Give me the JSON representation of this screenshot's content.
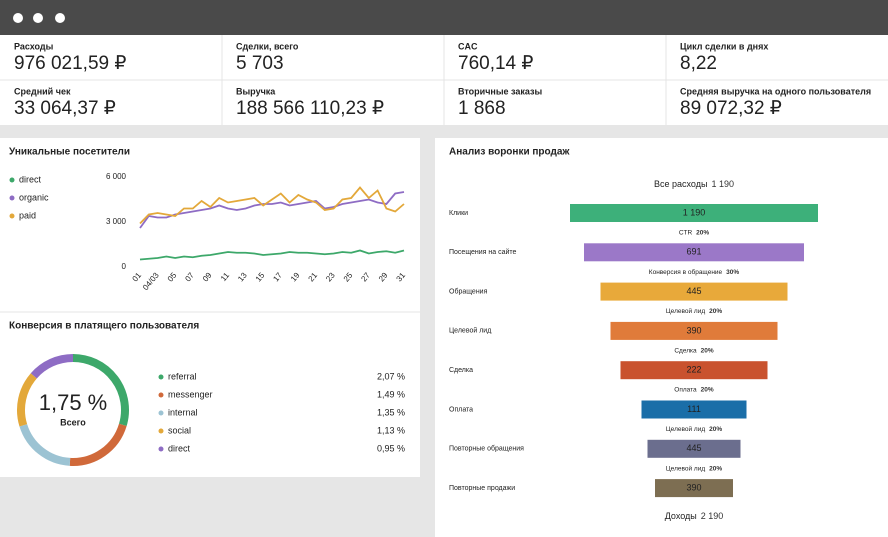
{
  "kpis": [
    {
      "label": "Расходы",
      "value": "976 021,59 ₽"
    },
    {
      "label": "Сделки, всего",
      "value": "5 703"
    },
    {
      "label": "CAC",
      "value": "760,14 ₽"
    },
    {
      "label": "Цикл сделки в днях",
      "value": "8,22"
    },
    {
      "label": "Средний чек",
      "value": "33 064,37 ₽"
    },
    {
      "label": "Выручка",
      "value": "188 566 110,23 ₽"
    },
    {
      "label": "Вторичные заказы",
      "value": "1 868"
    },
    {
      "label": "Средняя выручка на одного пользователя",
      "value": "89 072,32 ₽"
    }
  ],
  "visitors": {
    "type": "line",
    "title": "Уникальные посетители",
    "x": [
      1,
      2,
      3,
      4,
      5,
      6,
      7,
      8,
      9,
      10,
      11,
      12,
      13,
      14,
      15,
      16,
      17,
      18,
      19,
      20,
      21,
      22,
      23,
      24,
      25,
      26,
      27,
      28,
      29,
      30,
      31
    ],
    "xlim": [
      1,
      31
    ],
    "xticks": [
      {
        "value": 1,
        "label": "01"
      },
      {
        "value": 3,
        "label": "04/03"
      },
      {
        "value": 5,
        "label": "05"
      },
      {
        "value": 7,
        "label": "07"
      },
      {
        "value": 9,
        "label": "09"
      },
      {
        "value": 11,
        "label": "11"
      },
      {
        "value": 13,
        "label": "13"
      },
      {
        "value": 15,
        "label": "15"
      },
      {
        "value": 17,
        "label": "17"
      },
      {
        "value": 19,
        "label": "19"
      },
      {
        "value": 21,
        "label": "21"
      },
      {
        "value": 23,
        "label": "23"
      },
      {
        "value": 25,
        "label": "25"
      },
      {
        "value": 27,
        "label": "27"
      },
      {
        "value": 29,
        "label": "29"
      },
      {
        "value": 31,
        "label": "31"
      }
    ],
    "ylim": [
      0,
      6000
    ],
    "yticks": [
      0,
      {
        "value": 3000,
        "label": "3 000"
      },
      {
        "value": 6000,
        "label": "6 000"
      }
    ],
    "grid": false,
    "legend": "left",
    "series": [
      {
        "name": "direct",
        "color": "#3da86a",
        "values": [
          500,
          550,
          600,
          700,
          600,
          700,
          650,
          750,
          800,
          900,
          1000,
          950,
          950,
          900,
          800,
          850,
          900,
          1000,
          950,
          950,
          900,
          850,
          900,
          1000,
          950,
          1100,
          900,
          1000,
          1050,
          950,
          1100
        ]
      },
      {
        "name": "organic",
        "color": "#8e6cc4",
        "values": [
          2600,
          3400,
          3300,
          3300,
          3500,
          3600,
          3700,
          3800,
          3900,
          4100,
          3900,
          3800,
          3900,
          4100,
          4200,
          4200,
          4300,
          4100,
          4200,
          4300,
          4400,
          3900,
          4000,
          4200,
          4300,
          4400,
          4500,
          4300,
          4200,
          4900,
          5000
        ]
      },
      {
        "name": "paid",
        "color": "#e3a83a",
        "values": [
          2900,
          3500,
          3600,
          3500,
          3400,
          3900,
          3900,
          4400,
          4000,
          4600,
          4300,
          4400,
          4500,
          4600,
          4100,
          4500,
          4900,
          4300,
          4800,
          4500,
          4300,
          3800,
          3900,
          4500,
          4600,
          5300,
          4600,
          5100,
          3900,
          3700,
          4200
        ]
      }
    ]
  },
  "conversion": {
    "type": "donut",
    "title": "Конверсия в платящего пользователя",
    "center_value": "1,75 %",
    "center_label": "Всего",
    "categories": [
      "referral",
      "messenger",
      "internal",
      "social",
      "direct"
    ],
    "values": [
      2.07,
      1.49,
      1.35,
      1.13,
      0.95
    ],
    "value_labels": [
      "2,07 %",
      "1,49 %",
      "1,35 %",
      "1,13 %",
      "0,95 %"
    ],
    "colors": [
      "#3da86a",
      "#d0693a",
      "#9cc3d3",
      "#e3a83a",
      "#8e6cc4"
    ]
  },
  "funnel": {
    "title": "Анализ воронки продаж",
    "total": {
      "label": "Все расходы",
      "value": "1 190"
    },
    "stages": [
      {
        "label": "Клики",
        "value": "1 190",
        "color": "#3db07a"
      },
      {
        "label": "Посещения на сайте",
        "value": "691",
        "color": "#9b78c8"
      },
      {
        "label": "Обращения",
        "value": "445",
        "color": "#e8a93a"
      },
      {
        "label": "Целевой лид",
        "value": "390",
        "color": "#e07b3a"
      },
      {
        "label": "Сделка",
        "value": "222",
        "color": "#c9522e"
      },
      {
        "label": "Оплата",
        "value": "111",
        "color": "#1a6ea8"
      },
      {
        "label": "Повторные обращения",
        "value": "445",
        "color": "#6b6e8e"
      },
      {
        "label": "Повторные продажи",
        "value": "390",
        "color": "#7d6e52"
      }
    ],
    "steps": [
      {
        "label": "CTR",
        "value": "20%"
      },
      {
        "label": "Конверсия в обращение",
        "value": "30%"
      },
      {
        "label": "Целевой лид",
        "value": "20%"
      },
      {
        "label": "Сделка",
        "value": "20%"
      },
      {
        "label": "Оплата",
        "value": "20%"
      },
      {
        "label": "Целевой лид",
        "value": "20%"
      },
      {
        "label": "Целевой лид",
        "value": "20%"
      }
    ],
    "income": {
      "label": "Доходы",
      "value": "2 190"
    }
  }
}
